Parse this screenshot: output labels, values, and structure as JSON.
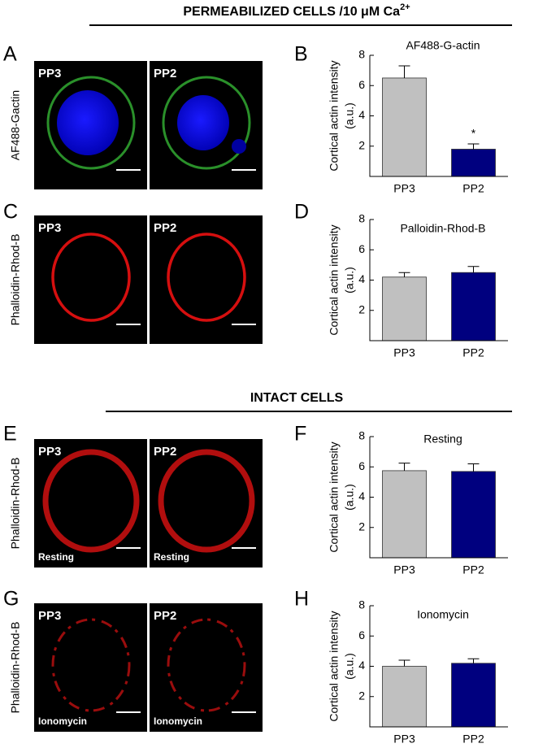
{
  "headings": [
    {
      "text": "PERMEABILIZED CELLS /10 μM Ca",
      "superscript": "2+"
    },
    {
      "text": "INTACT CELLS"
    }
  ],
  "panels": [
    {
      "letter": "A",
      "ylabel": "AF488-Gactin",
      "images": [
        {
          "label": "PP3"
        },
        {
          "label": "PP2"
        }
      ]
    },
    {
      "letter": "C",
      "ylabel": "Phalloidin-Rhod-B",
      "images": [
        {
          "label": "PP3"
        },
        {
          "label": "PP2"
        }
      ]
    },
    {
      "letter": "E",
      "ylabel": "Phalloidin-Rhod-B",
      "images": [
        {
          "label": "PP3",
          "note": "Resting"
        },
        {
          "label": "PP2",
          "note": "Resting"
        }
      ]
    },
    {
      "letter": "G",
      "ylabel": "Phalloidin-Rhod-B",
      "images": [
        {
          "label": "PP3",
          "note": "Ionomycin"
        },
        {
          "label": "PP2",
          "note": "Ionomycin"
        }
      ]
    }
  ],
  "chart_data": [
    {
      "type": "bar",
      "letter": "B",
      "title": "AF488-G-actin",
      "ylabel": [
        "Cortical actin intensity",
        "(a.u.)"
      ],
      "categories": [
        "PP3",
        "PP2"
      ],
      "values": [
        6.5,
        1.8
      ],
      "errors": [
        0.8,
        0.35
      ],
      "colors": [
        "#c0c0c0",
        "#00007f"
      ],
      "ylim": [
        0,
        8
      ],
      "yticks": [
        2,
        4,
        6,
        8
      ],
      "annotation": "*"
    },
    {
      "type": "bar",
      "letter": "D",
      "title": "Palloidin-Rhod-B",
      "ylabel": [
        "Cortical actin intensity",
        "(a.u.)"
      ],
      "categories": [
        "PP3",
        "PP2"
      ],
      "values": [
        4.2,
        4.5
      ],
      "errors": [
        0.3,
        0.4
      ],
      "colors": [
        "#c0c0c0",
        "#00007f"
      ],
      "ylim": [
        0,
        8
      ],
      "yticks": [
        2,
        4,
        6,
        8
      ]
    },
    {
      "type": "bar",
      "letter": "F",
      "title": "Resting",
      "ylabel": [
        "Cortical actin intensity",
        "(a.u.)"
      ],
      "categories": [
        "PP3",
        "PP2"
      ],
      "values": [
        5.75,
        5.7
      ],
      "errors": [
        0.5,
        0.5
      ],
      "colors": [
        "#c0c0c0",
        "#00007f"
      ],
      "ylim": [
        0,
        8
      ],
      "yticks": [
        2,
        4,
        6,
        8
      ]
    },
    {
      "type": "bar",
      "letter": "H",
      "title": "Ionomycin",
      "ylabel": [
        "Cortical actin intensity",
        "(a.u.)"
      ],
      "categories": [
        "PP3",
        "PP2"
      ],
      "values": [
        4.0,
        4.2
      ],
      "errors": [
        0.4,
        0.3
      ],
      "colors": [
        "#c0c0c0",
        "#00007f"
      ],
      "ylim": [
        0,
        8
      ],
      "yticks": [
        2,
        4,
        6,
        8
      ]
    }
  ]
}
